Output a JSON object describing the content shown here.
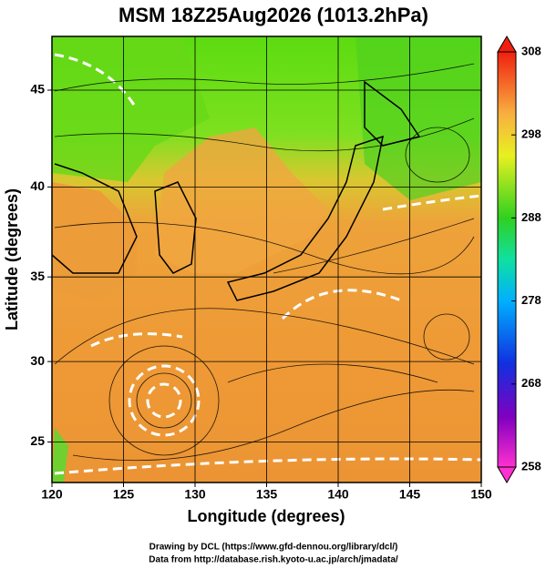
{
  "chart_data": {
    "type": "map",
    "title": "MSM 18Z25Aug2026 (1013.2hPa)",
    "xlabel": "Longitude (degrees)",
    "ylabel": "Latitude  (degrees)",
    "xlim": [
      120,
      150
    ],
    "xticks": [
      120,
      125,
      130,
      135,
      140,
      145,
      150
    ],
    "ylim": [
      22.4,
      47.6
    ],
    "yticks": [
      25,
      30,
      35,
      40,
      45
    ],
    "grid": true,
    "colorbar": {
      "lim": [
        258,
        308
      ],
      "ticks": [
        258,
        268,
        278,
        288,
        298,
        308
      ]
    },
    "credits": [
      "Drawing by DCL (https://www.gfd-dennou.org/library/dcl/)",
      "Data from http://database.rish.kyoto-u.ac.jp/arch/jmadata/"
    ]
  }
}
